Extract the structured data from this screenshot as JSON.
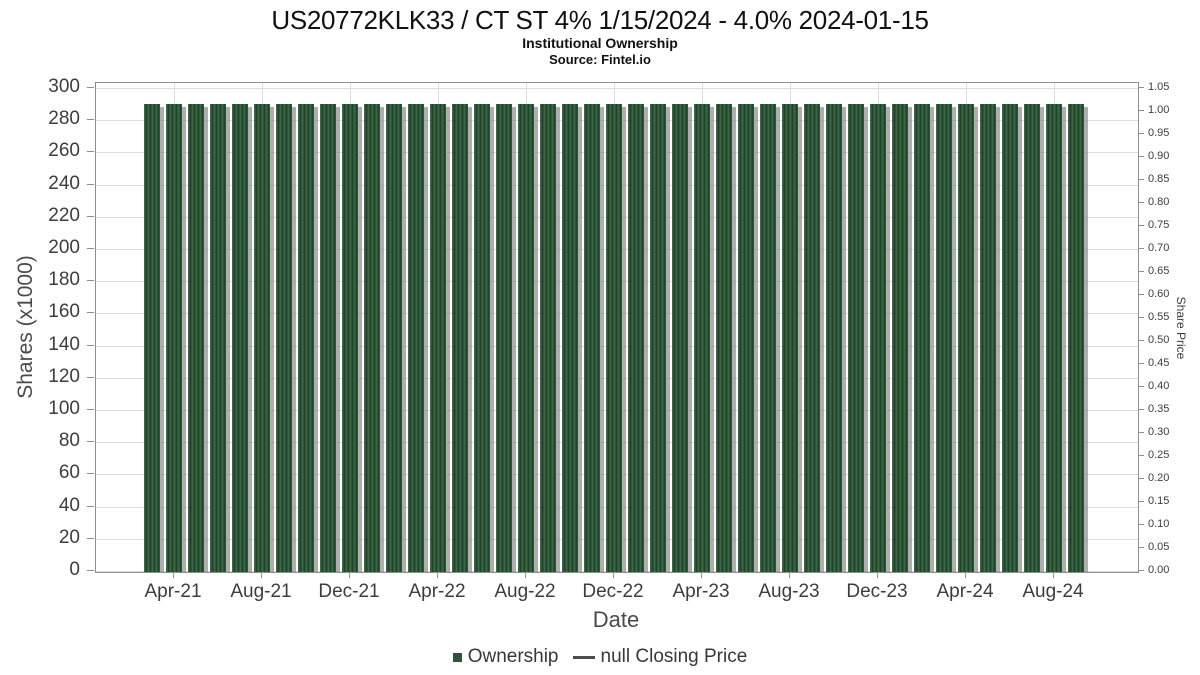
{
  "chart_data": {
    "type": "bar",
    "title": "US20772KLK33 / CT ST 4% 1/15/2024 - 4.0% 2024-01-15",
    "subtitle": "Institutional Ownership",
    "source": "Source: Fintel.io",
    "xlabel": "Date",
    "ylabel_left": "Shares (x1000)",
    "ylabel_right": "Share Price",
    "legend": [
      {
        "label": "Ownership",
        "marker": "square",
        "color": "#2e5539"
      },
      {
        "label": "null Closing Price",
        "marker": "line",
        "color": "#4d4d4d"
      }
    ],
    "categories": [
      "Mar-21",
      "Apr-21",
      "May-21",
      "Jun-21",
      "Jul-21",
      "Aug-21",
      "Sep-21",
      "Oct-21",
      "Nov-21",
      "Dec-21",
      "Jan-22",
      "Feb-22",
      "Mar-22",
      "Apr-22",
      "May-22",
      "Jun-22",
      "Jul-22",
      "Aug-22",
      "Sep-22",
      "Oct-22",
      "Nov-22",
      "Dec-22",
      "Jan-23",
      "Feb-23",
      "Mar-23",
      "Apr-23",
      "May-23",
      "Jun-23",
      "Jul-23",
      "Aug-23",
      "Sep-23",
      "Oct-23",
      "Nov-23",
      "Dec-23",
      "Jan-24",
      "Feb-24",
      "Mar-24",
      "Apr-24",
      "May-24",
      "Jun-24",
      "Jul-24",
      "Aug-24",
      "Sep-24"
    ],
    "values": [
      290,
      290,
      290,
      290,
      290,
      290,
      290,
      290,
      290,
      290,
      290,
      290,
      290,
      290,
      290,
      290,
      290,
      290,
      290,
      290,
      290,
      290,
      290,
      290,
      290,
      290,
      290,
      290,
      290,
      290,
      290,
      290,
      290,
      290,
      290,
      290,
      290,
      290,
      290,
      290,
      290,
      290,
      290
    ],
    "series": [
      {
        "name": "Ownership",
        "type": "bar",
        "values_note": "all months equal 290 (x1000 shares)"
      },
      {
        "name": "null Closing Price",
        "type": "line",
        "values_note": "no data plotted (null)"
      }
    ],
    "x_tick_labels": [
      "Apr-21",
      "Aug-21",
      "Dec-21",
      "Apr-22",
      "Aug-22",
      "Dec-22",
      "Apr-23",
      "Aug-23",
      "Dec-23",
      "Apr-24",
      "Aug-24"
    ],
    "y_left_ticks": [
      300,
      280,
      260,
      240,
      220,
      200,
      180,
      160,
      140,
      120,
      100,
      80,
      60,
      40,
      20,
      0
    ],
    "y_right_ticks": [
      1.05,
      1.0,
      0.95,
      0.9,
      0.85,
      0.8,
      0.75,
      0.7,
      0.65,
      0.6,
      0.55,
      0.5,
      0.45,
      0.4,
      0.35,
      0.3,
      0.25,
      0.2,
      0.15,
      0.1,
      0.05,
      0.0
    ],
    "ylim_left": [
      0,
      300
    ],
    "ylim_right": [
      0,
      1.05
    ],
    "grid": true,
    "legend_position": "bottom-center"
  },
  "colors": {
    "bar": "#2e5539",
    "bar_stripe_dark": "#20452a",
    "bar_stripe_light": "#3c6747",
    "shadow": "rgba(125,125,125,0.62)",
    "grid": "#dcdcdc",
    "axis_border": "#8f8f8f"
  }
}
